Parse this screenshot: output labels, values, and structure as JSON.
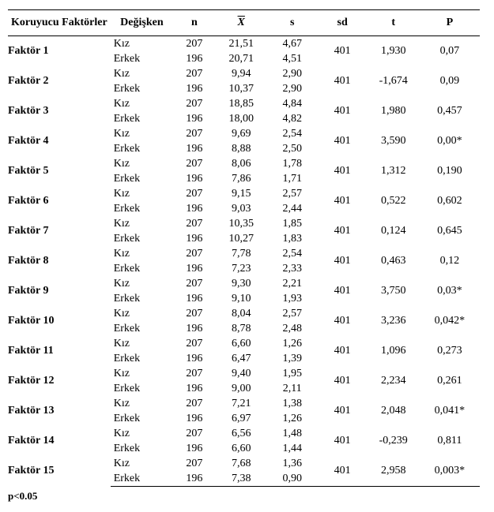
{
  "header": {
    "factor": "Koruyucu Faktörler",
    "variable": "Değişken",
    "n": "n",
    "xbar": "X",
    "s": "s",
    "sd": "sd",
    "t": "t",
    "p": "P"
  },
  "labels": {
    "girl": "Kız",
    "boy": "Erkek"
  },
  "footer": "p<0.05",
  "rows": [
    {
      "factor": "Faktör 1",
      "g": {
        "n": "207",
        "x": "21,51",
        "s": "4,67"
      },
      "b": {
        "n": "196",
        "x": "20,71",
        "s": "4,51"
      },
      "sd": "401",
      "t": "1,930",
      "p": "0,07"
    },
    {
      "factor": "Faktör 2",
      "g": {
        "n": "207",
        "x": "9,94",
        "s": "2,90"
      },
      "b": {
        "n": "196",
        "x": "10,37",
        "s": "2,90"
      },
      "sd": "401",
      "t": "-1,674",
      "p": "0,09"
    },
    {
      "factor": "Faktör 3",
      "g": {
        "n": "207",
        "x": "18,85",
        "s": "4,84"
      },
      "b": {
        "n": "196",
        "x": "18,00",
        "s": "4,82"
      },
      "sd": "401",
      "t": "1,980",
      "p": "0,457"
    },
    {
      "factor": "Faktör 4",
      "g": {
        "n": "207",
        "x": "9,69",
        "s": "2,54"
      },
      "b": {
        "n": "196",
        "x": "8,88",
        "s": "2,50"
      },
      "sd": "401",
      "t": "3,590",
      "p": "0,00*"
    },
    {
      "factor": "Faktör 5",
      "g": {
        "n": "207",
        "x": "8,06",
        "s": "1,78"
      },
      "b": {
        "n": "196",
        "x": "7,86",
        "s": "1,71"
      },
      "sd": "401",
      "t": "1,312",
      "p": "0,190"
    },
    {
      "factor": "Faktör 6",
      "g": {
        "n": "207",
        "x": "9,15",
        "s": "2,57"
      },
      "b": {
        "n": "196",
        "x": "9,03",
        "s": "2,44"
      },
      "sd": "401",
      "t": "0,522",
      "p": "0,602"
    },
    {
      "factor": "Faktör 7",
      "g": {
        "n": "207",
        "x": "10,35",
        "s": "1,85"
      },
      "b": {
        "n": "196",
        "x": "10,27",
        "s": "1,83"
      },
      "sd": "401",
      "t": "0,124",
      "p": "0,645"
    },
    {
      "factor": "Faktör 8",
      "g": {
        "n": "207",
        "x": "7,78",
        "s": "2,54"
      },
      "b": {
        "n": "196",
        "x": "7,23",
        "s": "2,33"
      },
      "sd": "401",
      "t": "0,463",
      "p": "0,12"
    },
    {
      "factor": "Faktör 9",
      "g": {
        "n": "207",
        "x": "9,30",
        "s": "2,21"
      },
      "b": {
        "n": "196",
        "x": "9,10",
        "s": "1,93"
      },
      "sd": "401",
      "t": "3,750",
      "p": "0,03*"
    },
    {
      "factor": "Faktör 10",
      "g": {
        "n": "207",
        "x": "8,04",
        "s": "2,57"
      },
      "b": {
        "n": "196",
        "x": "8,78",
        "s": "2,48"
      },
      "sd": "401",
      "t": "3,236",
      "p": "0,042*"
    },
    {
      "factor": "Faktör 11",
      "g": {
        "n": "207",
        "x": "6,60",
        "s": "1,26"
      },
      "b": {
        "n": "196",
        "x": "6,47",
        "s": "1,39"
      },
      "sd": "401",
      "t": "1,096",
      "p": "0,273"
    },
    {
      "factor": "Faktör 12",
      "g": {
        "n": "207",
        "x": "9,40",
        "s": "1,95"
      },
      "b": {
        "n": "196",
        "x": "9,00",
        "s": "2,11"
      },
      "sd": "401",
      "t": "2,234",
      "p": "0,261"
    },
    {
      "factor": "Faktör 13",
      "g": {
        "n": "207",
        "x": "7,21",
        "s": "1,38"
      },
      "b": {
        "n": "196",
        "x": "6,97",
        "s": "1,26"
      },
      "sd": "401",
      "t": "2,048",
      "p": "0,041*"
    },
    {
      "factor": "Faktör 14",
      "g": {
        "n": "207",
        "x": "6,56",
        "s": "1,48"
      },
      "b": {
        "n": "196",
        "x": "6,60",
        "s": "1,44"
      },
      "sd": "401",
      "t": "-0,239",
      "p": "0,811"
    },
    {
      "factor": "Faktör 15",
      "g": {
        "n": "207",
        "x": "7,68",
        "s": "1,36"
      },
      "b": {
        "n": "196",
        "x": "7,38",
        "s": "0,90"
      },
      "sd": "401",
      "t": "2,958",
      "p": "0,003*"
    }
  ],
  "style": {
    "font_family": "Times New Roman",
    "font_size_pt": 11,
    "text_color": "#000000",
    "background_color": "#ffffff",
    "border_color": "#000000"
  }
}
